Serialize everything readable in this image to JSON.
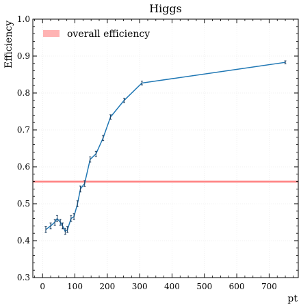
{
  "chart_data": {
    "type": "line",
    "title": "Higgs",
    "xlabel": "pt",
    "ylabel": "Efficiency",
    "xlim": [
      -30,
      790
    ],
    "ylim": [
      0.3,
      1.0
    ],
    "xticks": [
      0,
      100,
      200,
      300,
      400,
      500,
      600,
      700
    ],
    "yticks": [
      0.3,
      0.4,
      0.5,
      0.6,
      0.7,
      0.8,
      0.9,
      1.0
    ],
    "xtick_labels": [
      "0",
      "100",
      "200",
      "300",
      "400",
      "500",
      "600",
      "700"
    ],
    "ytick_labels": [
      "0.3",
      "0.4",
      "0.5",
      "0.6",
      "0.7",
      "0.8",
      "0.9",
      "1.0"
    ],
    "grid": true,
    "legend_position": "top-left",
    "series": [
      {
        "color": "#1f77b4",
        "x": [
          10,
          25,
          38,
          45,
          55,
          62,
          70,
          77,
          88,
          97,
          108,
          117,
          130,
          147,
          165,
          187,
          210,
          252,
          307,
          750
        ],
        "y": [
          0.43,
          0.44,
          0.45,
          0.46,
          0.45,
          0.44,
          0.425,
          0.43,
          0.46,
          0.465,
          0.5,
          0.54,
          0.555,
          0.62,
          0.635,
          0.678,
          0.735,
          0.78,
          0.827,
          0.883
        ],
        "yerr": [
          0.008,
          0.008,
          0.008,
          0.008,
          0.008,
          0.008,
          0.008,
          0.008,
          0.008,
          0.008,
          0.008,
          0.008,
          0.008,
          0.007,
          0.007,
          0.007,
          0.006,
          0.006,
          0.005,
          0.004
        ]
      }
    ],
    "reference_line": {
      "label": "overall efficiency",
      "value": 0.56,
      "color": "#ff7f7f"
    }
  }
}
